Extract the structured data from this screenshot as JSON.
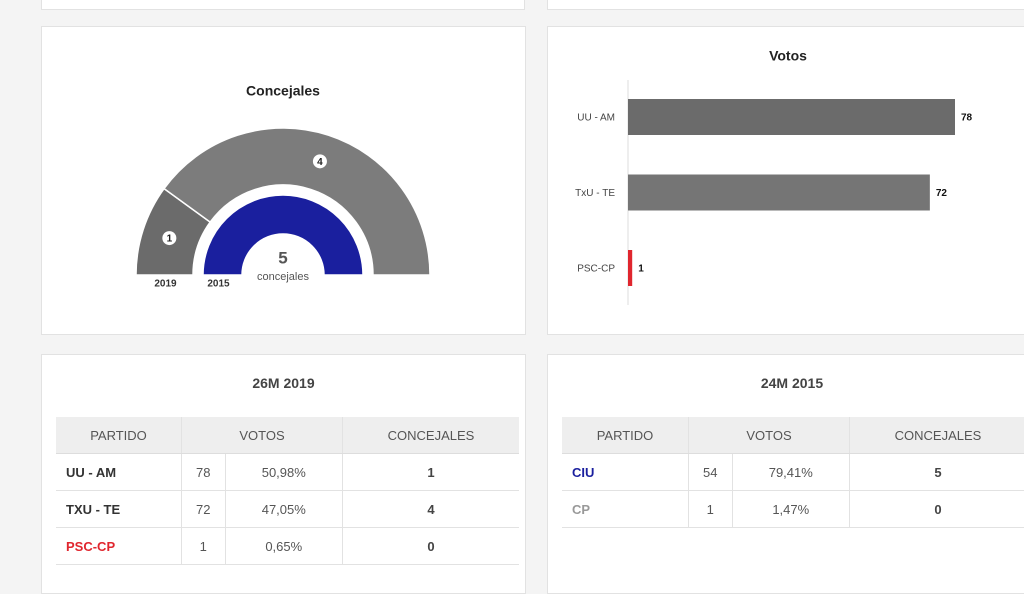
{
  "chart_data": [
    {
      "type": "semi-donut",
      "title": "Concejales",
      "center_value": 5,
      "center_label": "concejales",
      "series": [
        {
          "name": "2019",
          "values": [
            1,
            4
          ],
          "colors": [
            "#6b6b6b",
            "#7c7c7c"
          ]
        },
        {
          "name": "2015",
          "values": [
            5
          ],
          "colors": [
            "#1a1f9e"
          ]
        }
      ]
    },
    {
      "type": "bar",
      "orientation": "horizontal",
      "title": "Votos",
      "categories": [
        "UU - AM",
        "TxU - TE",
        "PSC-CP"
      ],
      "values": [
        78,
        72,
        1
      ],
      "colors": [
        "#6b6b6b",
        "#757575",
        "#e0262e"
      ]
    }
  ],
  "tables": [
    {
      "title": "26M 2019",
      "headers": [
        "PARTIDO",
        "VOTOS",
        "CONCEJALES"
      ],
      "rows": [
        {
          "partido": "UU - AM",
          "color": "#333333",
          "votos": 78,
          "porcentaje": "50,98%",
          "concejales": 1
        },
        {
          "partido": "TXU - TE",
          "color": "#333333",
          "votos": 72,
          "porcentaje": "47,05%",
          "concejales": 4
        },
        {
          "partido": "PSC-CP",
          "color": "#e0262e",
          "votos": 1,
          "porcentaje": "0,65%",
          "concejales": 0
        }
      ]
    },
    {
      "title": "24M 2015",
      "headers": [
        "PARTIDO",
        "VOTOS",
        "CONCEJALES"
      ],
      "rows": [
        {
          "partido": "CIU",
          "color": "#1a1f9e",
          "votos": 54,
          "porcentaje": "79,41%",
          "concejales": 5
        },
        {
          "partido": "CP",
          "color": "#999999",
          "votos": 1,
          "porcentaje": "1,47%",
          "concejales": 0
        }
      ]
    }
  ]
}
